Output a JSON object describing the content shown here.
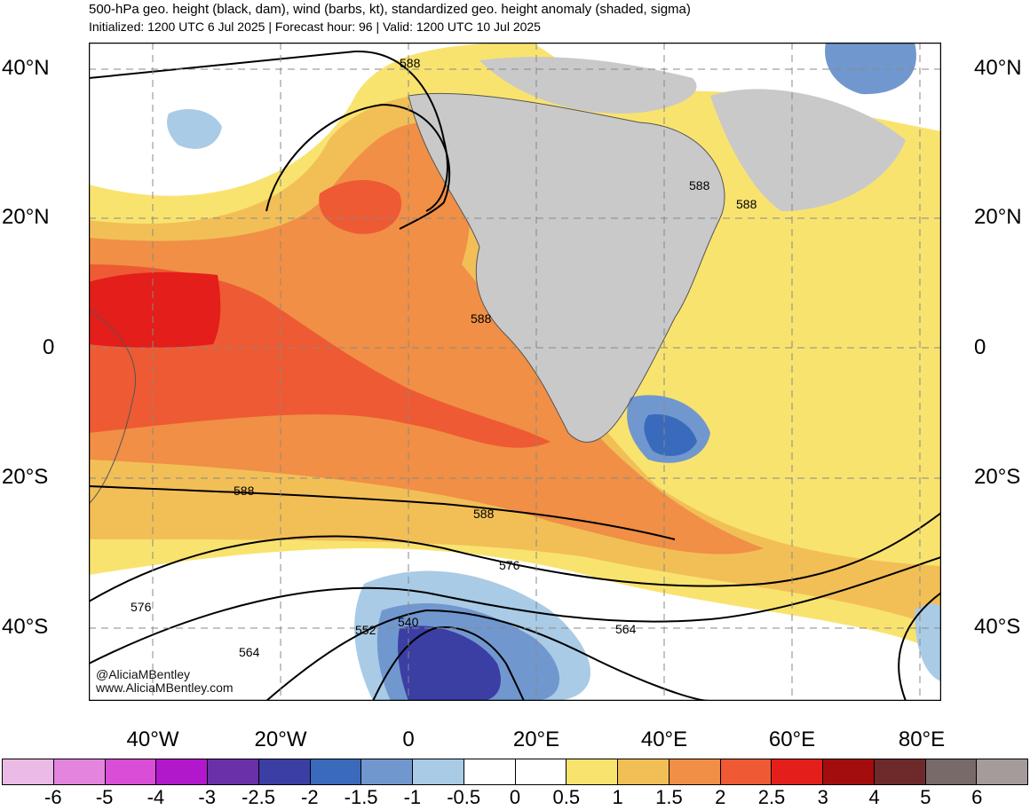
{
  "header": {
    "title": "500-hPa geo. height (black, dam), wind (barbs, kt), standardized geo. height anomaly (shaded, sigma)",
    "subtitle": "Initialized: 1200 UTC 6 Jul 2025 | Forecast hour: 96 | Valid: 1200 UTC 10 Jul 2025"
  },
  "axes": {
    "lat_labels_left": [
      "40°N",
      "20°N",
      "0",
      "20°S",
      "40°S"
    ],
    "lat_labels_right": [
      "40°N",
      "20°N",
      "0",
      "20°S",
      "40°S"
    ],
    "lon_labels": [
      "40°W",
      "20°W",
      "0",
      "20°E",
      "40°E",
      "60°E",
      "80°E"
    ]
  },
  "contour_labels": [
    "588",
    "588",
    "588",
    "588",
    "588",
    "588",
    "576",
    "576",
    "564",
    "564",
    "552",
    "540"
  ],
  "credits": {
    "handle": "@AliciaMBentley",
    "website": "www.AliciaMBentley.com"
  },
  "colorbar": {
    "labels": [
      "-6",
      "-5",
      "-4",
      "-3",
      "-2.5",
      "-2",
      "-1.5",
      "-1",
      "-0.5",
      "0",
      "0.5",
      "1",
      "1.5",
      "2",
      "2.5",
      "3",
      "4",
      "5",
      "6"
    ],
    "colors": [
      "#ebbbe6",
      "#e384de",
      "#d94ed6",
      "#b118cc",
      "#6a30a8",
      "#3b3ea3",
      "#3a6abc",
      "#7197cf",
      "#a9cbe6",
      "#ffffff",
      "#ffffff",
      "#f9e36f",
      "#f2bf57",
      "#f08f45",
      "#ee5a33",
      "#e41e1a",
      "#a30d0e",
      "#6e2a2a",
      "#776a69",
      "#a49b9b"
    ]
  },
  "map_colors": {
    "land": "#c9c9c9",
    "neg_weak": "#a9cbe6",
    "neg_mod": "#7197cf",
    "neg_strong": "#3a6abc",
    "neg_vstrong": "#3b3ea3",
    "pos_weak": "#f9e36f",
    "pos_mod": "#f2bf57",
    "pos_strong": "#f08f45",
    "pos_vstrong": "#ee5a33",
    "pos_extreme": "#e41e1a"
  }
}
